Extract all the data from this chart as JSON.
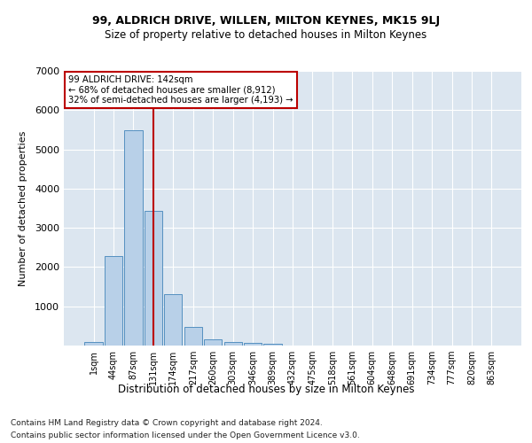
{
  "title": "99, ALDRICH DRIVE, WILLEN, MILTON KEYNES, MK15 9LJ",
  "subtitle": "Size of property relative to detached houses in Milton Keynes",
  "xlabel": "Distribution of detached houses by size in Milton Keynes",
  "ylabel": "Number of detached properties",
  "footnote1": "Contains HM Land Registry data © Crown copyright and database right 2024.",
  "footnote2": "Contains public sector information licensed under the Open Government Licence v3.0.",
  "bar_labels": [
    "1sqm",
    "44sqm",
    "87sqm",
    "131sqm",
    "174sqm",
    "217sqm",
    "260sqm",
    "303sqm",
    "346sqm",
    "389sqm",
    "432sqm",
    "475sqm",
    "518sqm",
    "561sqm",
    "604sqm",
    "648sqm",
    "691sqm",
    "734sqm",
    "777sqm",
    "820sqm",
    "863sqm"
  ],
  "bar_values": [
    80,
    2290,
    5480,
    3440,
    1310,
    470,
    155,
    85,
    60,
    35,
    0,
    0,
    0,
    0,
    0,
    0,
    0,
    0,
    0,
    0,
    0
  ],
  "bar_color": "#b8d0e8",
  "bar_edge_color": "#5590c0",
  "figure_bg": "#ffffff",
  "axes_bg": "#dce6f0",
  "grid_color": "#ffffff",
  "vline_x": 3.0,
  "vline_color": "#bb0000",
  "annotation_line1": "99 ALDRICH DRIVE: 142sqm",
  "annotation_line2": "← 68% of detached houses are smaller (8,912)",
  "annotation_line3": "32% of semi-detached houses are larger (4,193) →",
  "annotation_box_edgecolor": "#bb0000",
  "ylim": [
    0,
    7000
  ],
  "yticks": [
    0,
    1000,
    2000,
    3000,
    4000,
    5000,
    6000,
    7000
  ]
}
